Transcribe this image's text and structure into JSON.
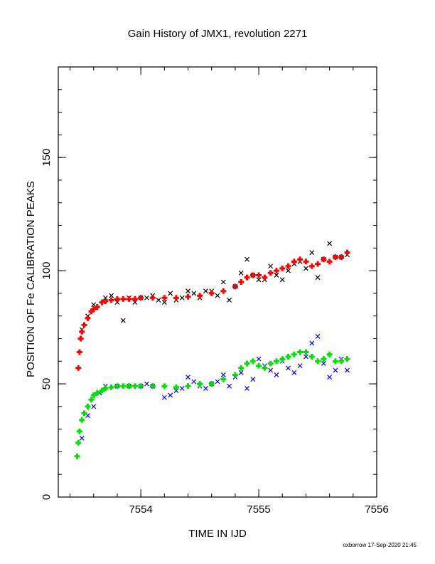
{
  "chart_data": {
    "type": "scatter",
    "title": "Gain History of JMX1, revolution 2271",
    "xlabel": "TIME IN IJD",
    "ylabel": "POSITION OF Fe CALIBRATION PEAKS",
    "footer": "oxborrow 17-Sep-2020 21:45",
    "xlim": [
      7553.3,
      7556.0
    ],
    "ylim": [
      0,
      190
    ],
    "x_ticks": [
      7554,
      7555,
      7556
    ],
    "y_ticks": [
      0,
      50,
      100,
      150
    ],
    "x_tick_labels": [
      "7554",
      "7555",
      "7556"
    ],
    "y_tick_labels": [
      "0",
      "50",
      "100",
      "150"
    ],
    "grid": false,
    "legend": "none",
    "series": [
      {
        "marker": "x",
        "color": "#000000",
        "x": [
          7553.5,
          7553.55,
          7553.6,
          7553.7,
          7553.75,
          7553.8,
          7553.85,
          7553.9,
          7553.95,
          7554.0,
          7554.05,
          7554.1,
          7554.15,
          7554.2,
          7554.25,
          7554.3,
          7554.35,
          7554.4,
          7554.45,
          7554.5,
          7554.55,
          7554.6,
          7554.65,
          7554.7,
          7554.75,
          7554.8,
          7554.85,
          7554.9,
          7554.95,
          7555.0,
          7555.05,
          7555.1,
          7555.15,
          7555.2,
          7555.25,
          7555.3,
          7555.35,
          7555.4,
          7555.45,
          7555.5,
          7555.55,
          7555.6,
          7555.65,
          7555.7,
          7555.75
        ],
        "y": [
          74,
          80,
          85,
          88,
          89,
          86,
          78,
          88,
          86,
          88,
          88,
          89,
          87,
          86,
          90,
          87,
          88,
          91,
          90,
          88,
          91,
          91,
          89,
          95,
          87,
          93,
          99,
          105,
          98,
          96,
          96,
          102,
          98,
          96,
          100,
          103,
          104,
          101,
          108,
          97,
          105,
          112,
          106,
          106,
          107
        ]
      },
      {
        "marker": "+",
        "color": "#ff0000",
        "x": [
          7553.47,
          7553.48,
          7553.49,
          7553.5,
          7553.52,
          7553.55,
          7553.58,
          7553.6,
          7553.63,
          7553.67,
          7553.7,
          7553.75,
          7553.8,
          7553.85,
          7553.9,
          7553.95,
          7554.0,
          7554.1,
          7554.2,
          7554.3,
          7554.4,
          7554.5,
          7554.6,
          7554.7,
          7554.8,
          7554.85,
          7554.9,
          7554.95,
          7555.0,
          7555.05,
          7555.1,
          7555.15,
          7555.2,
          7555.25,
          7555.3,
          7555.35,
          7555.4,
          7555.45,
          7555.5,
          7555.55,
          7555.6,
          7555.65,
          7555.7,
          7555.75
        ],
        "y": [
          57,
          64,
          70,
          73,
          76,
          79,
          82,
          83,
          84,
          86,
          86.5,
          87,
          87.5,
          87.5,
          87.5,
          87.5,
          88,
          88,
          88,
          88,
          88.5,
          89,
          90,
          91,
          93,
          95,
          97,
          98,
          98,
          97,
          99,
          100,
          101,
          102,
          104,
          105,
          104,
          102,
          103,
          105,
          104,
          106,
          106,
          108
        ]
      },
      {
        "marker": "x",
        "color": "#0000ff",
        "x": [
          7553.5,
          7553.55,
          7553.6,
          7553.65,
          7553.7,
          7553.8,
          7553.9,
          7554.0,
          7554.05,
          7554.1,
          7554.2,
          7554.25,
          7554.3,
          7554.35,
          7554.4,
          7554.45,
          7554.5,
          7554.55,
          7554.6,
          7554.65,
          7554.7,
          7554.75,
          7554.8,
          7554.85,
          7554.9,
          7554.95,
          7555.0,
          7555.05,
          7555.1,
          7555.15,
          7555.2,
          7555.25,
          7555.3,
          7555.35,
          7555.4,
          7555.45,
          7555.5,
          7555.55,
          7555.6,
          7555.65,
          7555.7,
          7555.75
        ],
        "y": [
          26,
          36,
          40,
          46,
          49,
          49,
          49,
          49,
          50,
          49,
          44,
          45,
          47,
          48,
          53,
          51,
          49,
          48,
          50,
          51,
          54,
          49,
          53,
          55,
          48,
          52,
          61,
          58,
          56,
          54,
          60,
          57,
          55,
          58,
          62,
          68,
          71,
          59,
          53,
          56,
          61,
          56
        ]
      },
      {
        "marker": "+",
        "color": "#00e000",
        "x": [
          7553.46,
          7553.47,
          7553.48,
          7553.5,
          7553.52,
          7553.55,
          7553.58,
          7553.6,
          7553.63,
          7553.67,
          7553.7,
          7553.75,
          7553.8,
          7553.85,
          7553.9,
          7553.95,
          7554.0,
          7554.1,
          7554.2,
          7554.3,
          7554.4,
          7554.5,
          7554.6,
          7554.7,
          7554.8,
          7554.85,
          7554.9,
          7554.95,
          7555.0,
          7555.05,
          7555.1,
          7555.15,
          7555.2,
          7555.25,
          7555.3,
          7555.35,
          7555.4,
          7555.45,
          7555.5,
          7555.55,
          7555.6,
          7555.65,
          7555.7,
          7555.75
        ],
        "y": [
          18,
          24,
          29,
          34,
          37,
          40,
          43,
          45,
          46,
          47,
          48,
          48.5,
          49,
          49,
          49,
          49,
          49,
          49,
          49,
          48.5,
          49,
          50,
          50,
          52,
          54,
          57,
          59,
          60,
          58,
          57,
          59,
          60,
          61,
          62,
          63,
          64,
          64,
          62,
          60,
          61,
          63,
          60,
          60,
          61
        ]
      }
    ]
  }
}
